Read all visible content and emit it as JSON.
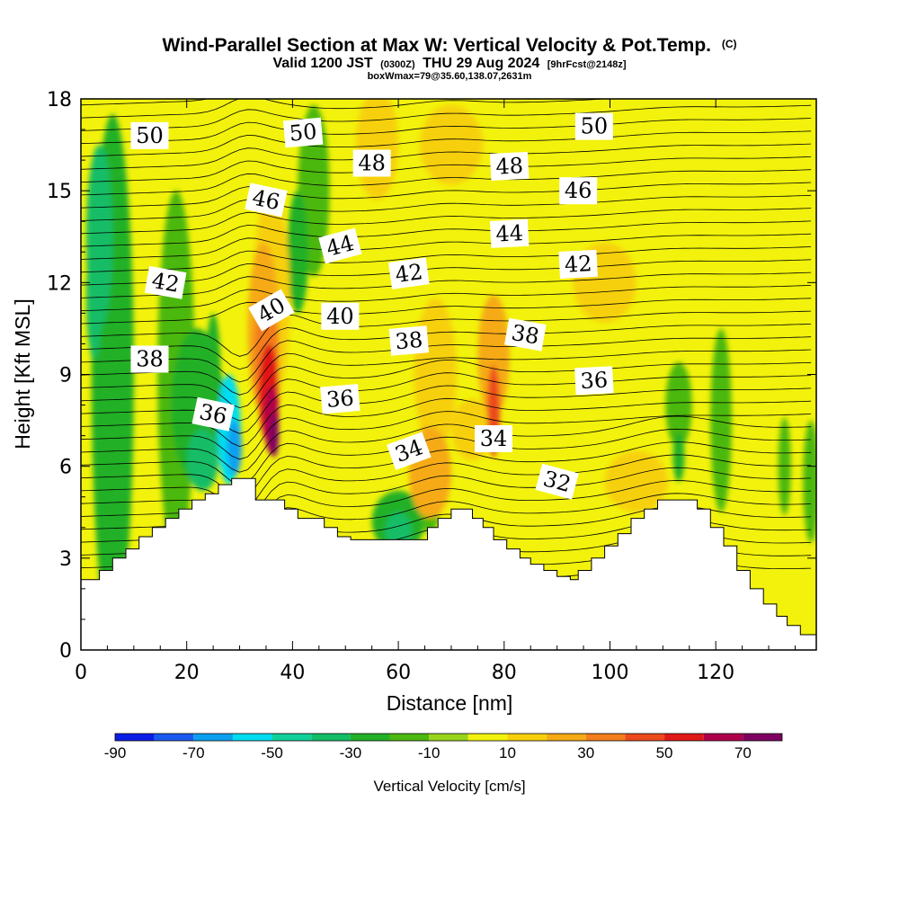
{
  "header": {
    "title_main": "Wind-Parallel Section at Max W: Vertical Velocity & Pot.Temp.",
    "title_tag": "(C)",
    "valid_prefix": "Valid 1200 JST",
    "valid_utc": "(0300Z)",
    "valid_date": "THU 29 Aug 2024",
    "forecast_tag": "[9hrFcst@2148z]",
    "box_line": "boxWmax=79@35.60,138.07,2631m"
  },
  "chart_data": {
    "type": "heatmap",
    "xlabel": "Distance [nm]",
    "ylabel": "Height [Kft MSL]",
    "xlim": [
      0,
      139
    ],
    "ylim": [
      0,
      18
    ],
    "x_ticks": [
      "0",
      "20",
      "40",
      "60",
      "80",
      "100",
      "120"
    ],
    "x_tick_values": [
      0,
      20,
      40,
      60,
      80,
      100,
      120
    ],
    "y_ticks": [
      "0",
      "3",
      "6",
      "9",
      "12",
      "15",
      "18"
    ],
    "y_tick_values": [
      0,
      3,
      6,
      9,
      12,
      15,
      18
    ],
    "terrain_kft": [
      [
        0,
        2.3
      ],
      [
        3.5,
        2.6
      ],
      [
        6,
        3.0
      ],
      [
        8.5,
        3.3
      ],
      [
        11,
        3.7
      ],
      [
        13.5,
        4.0
      ],
      [
        16,
        4.3
      ],
      [
        18.5,
        4.6
      ],
      [
        21,
        4.9
      ],
      [
        23.5,
        5.1
      ],
      [
        26,
        5.4
      ],
      [
        28.5,
        5.6
      ],
      [
        31,
        5.6
      ],
      [
        33,
        4.9
      ],
      [
        36,
        4.9
      ],
      [
        38.5,
        4.6
      ],
      [
        41,
        4.3
      ],
      [
        43.5,
        4.3
      ],
      [
        46,
        4.0
      ],
      [
        48.5,
        3.7
      ],
      [
        51,
        3.6
      ],
      [
        53,
        3.6
      ],
      [
        55.5,
        3.6
      ],
      [
        58,
        3.6
      ],
      [
        61,
        3.6
      ],
      [
        64,
        3.6
      ],
      [
        65.5,
        4.0
      ],
      [
        67.5,
        4.3
      ],
      [
        70,
        4.6
      ],
      [
        72.5,
        4.6
      ],
      [
        74,
        4.3
      ],
      [
        76,
        4.0
      ],
      [
        78,
        3.6
      ],
      [
        80.5,
        3.3
      ],
      [
        83,
        3.0
      ],
      [
        85,
        2.8
      ],
      [
        87.5,
        2.6
      ],
      [
        90,
        2.4
      ],
      [
        92.5,
        2.3
      ],
      [
        94,
        2.6
      ],
      [
        96.5,
        3.0
      ],
      [
        99,
        3.4
      ],
      [
        101.5,
        3.8
      ],
      [
        104,
        4.3
      ],
      [
        106.5,
        4.6
      ],
      [
        109,
        4.9
      ],
      [
        111.5,
        4.9
      ],
      [
        114,
        4.9
      ],
      [
        116.5,
        4.6
      ],
      [
        119,
        4.0
      ],
      [
        121.5,
        3.4
      ],
      [
        124,
        2.6
      ],
      [
        126.5,
        2.0
      ],
      [
        129,
        1.5
      ],
      [
        131.5,
        1.1
      ],
      [
        133.5,
        0.8
      ],
      [
        136,
        0.5
      ],
      [
        139,
        0.4
      ]
    ],
    "isentrope_labels": [
      {
        "text": "50",
        "x": 13,
        "y": 16.8,
        "rot": 0
      },
      {
        "text": "50",
        "x": 42,
        "y": 16.9,
        "rot": -5
      },
      {
        "text": "50",
        "x": 97,
        "y": 17.1,
        "rot": 0
      },
      {
        "text": "48",
        "x": 55,
        "y": 15.9,
        "rot": 0
      },
      {
        "text": "48",
        "x": 81,
        "y": 15.8,
        "rot": -3
      },
      {
        "text": "46",
        "x": 35,
        "y": 14.7,
        "rot": 12
      },
      {
        "text": "46",
        "x": 94,
        "y": 15.0,
        "rot": 0
      },
      {
        "text": "44",
        "x": 49,
        "y": 13.2,
        "rot": -15
      },
      {
        "text": "44",
        "x": 81,
        "y": 13.6,
        "rot": -3
      },
      {
        "text": "42",
        "x": 16,
        "y": 12.0,
        "rot": 10
      },
      {
        "text": "42",
        "x": 62,
        "y": 12.3,
        "rot": -8
      },
      {
        "text": "42",
        "x": 94,
        "y": 12.6,
        "rot": -3
      },
      {
        "text": "40",
        "x": 36,
        "y": 11.1,
        "rot": -30
      },
      {
        "text": "40",
        "x": 49,
        "y": 10.9,
        "rot": 0
      },
      {
        "text": "38",
        "x": 13,
        "y": 9.5,
        "rot": 0
      },
      {
        "text": "38",
        "x": 62,
        "y": 10.1,
        "rot": -5
      },
      {
        "text": "38",
        "x": 84,
        "y": 10.3,
        "rot": 10
      },
      {
        "text": "36",
        "x": 25,
        "y": 7.7,
        "rot": 12
      },
      {
        "text": "36",
        "x": 49,
        "y": 8.2,
        "rot": -5
      },
      {
        "text": "36",
        "x": 97,
        "y": 8.8,
        "rot": -3
      },
      {
        "text": "34",
        "x": 62,
        "y": 6.5,
        "rot": -20
      },
      {
        "text": "34",
        "x": 78,
        "y": 6.9,
        "rot": 0
      },
      {
        "text": "32",
        "x": 90,
        "y": 5.5,
        "rot": 15
      }
    ],
    "colorbar": {
      "label": "Vertical Velocity [cm/s]",
      "tick_labels": [
        "-90",
        "-70",
        "-50",
        "-30",
        "-10",
        "10",
        "30",
        "50",
        "70"
      ],
      "tick_values": [
        -90,
        -70,
        -50,
        -30,
        -10,
        10,
        30,
        50,
        70
      ],
      "bins": [
        -90,
        -80,
        -70,
        -60,
        -50,
        -40,
        -30,
        -20,
        -10,
        0,
        10,
        20,
        30,
        40,
        50,
        60,
        70,
        80
      ],
      "colors": [
        "#0a1ee6",
        "#1a5af0",
        "#0aa0f0",
        "#00dcf0",
        "#10d09a",
        "#12bd66",
        "#24b028",
        "#4cb810",
        "#9ad41a",
        "#f2f20c",
        "#f7d00a",
        "#f6aa14",
        "#f47d1c",
        "#ec4a1c",
        "#e01818",
        "#b0004a",
        "#7e0060"
      ]
    },
    "colors": {
      "background": "#f2f20c",
      "contour": "#000000"
    }
  }
}
